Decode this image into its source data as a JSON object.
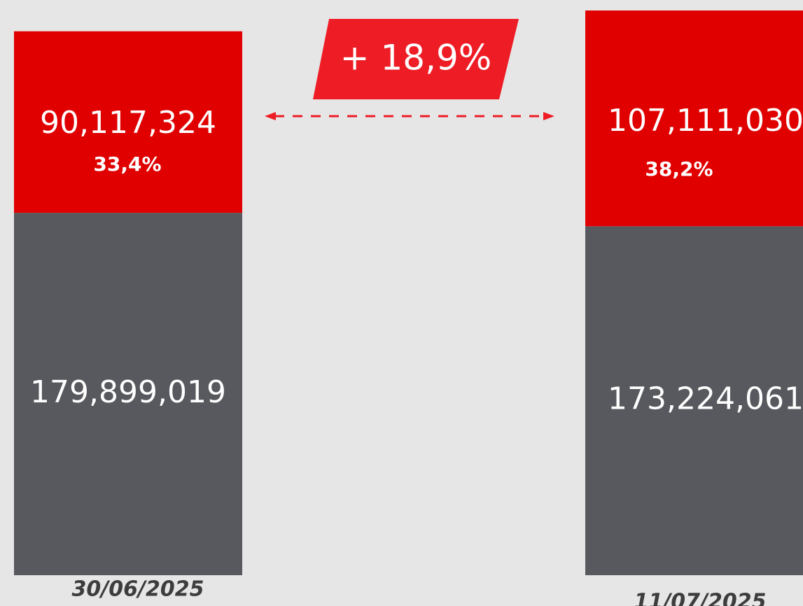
{
  "chart_data": {
    "type": "bar",
    "stacked": true,
    "categories": [
      "30/06/2025",
      "11/07/2025"
    ],
    "series": [
      {
        "color": "#58595e",
        "values": [
          179899019,
          173224061
        ],
        "value_labels": [
          "179,899,019",
          "173,224,061"
        ]
      },
      {
        "color": "#e00000",
        "values": [
          90117324,
          107111030
        ],
        "value_labels": [
          "90,117,324",
          "107,111,030"
        ],
        "percent_labels": [
          "33,4%",
          "38,2%"
        ]
      }
    ],
    "annotation": "+ 18,9%"
  }
}
